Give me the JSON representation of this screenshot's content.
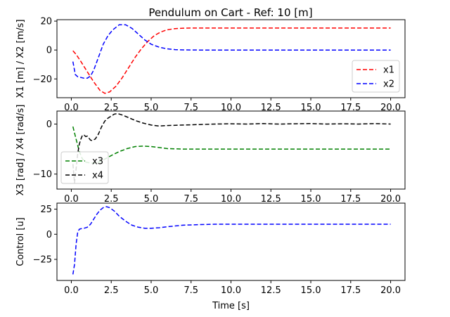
{
  "chart_data": [
    {
      "type": "line",
      "title": "Pendulum on Cart - Ref: 10 [m]",
      "xlabel": "",
      "ylabel": "X1 [m] / X2 [m/s]",
      "xlim": [
        -0.9,
        20.9
      ],
      "ylim": [
        -33,
        21
      ],
      "xticks": [
        "0.0",
        "2.5",
        "5.0",
        "7.5",
        "10.0",
        "12.5",
        "15.0",
        "17.5",
        "20.0"
      ],
      "yticks": [
        "20",
        "0",
        "−20"
      ],
      "legend": "lower-right",
      "series": [
        {
          "name": "x1",
          "color": "#ff0000",
          "style": "dashed",
          "x": [
            0.1,
            0.3,
            0.6,
            1.0,
            1.4,
            1.8,
            2.1,
            2.4,
            2.8,
            3.2,
            3.6,
            4.0,
            4.4,
            4.8,
            5.2,
            5.6,
            6.0,
            6.5,
            7.0,
            7.5,
            8.0,
            9.0,
            10.0,
            12.0,
            14.0,
            16.0,
            18.0,
            20.0
          ],
          "y": [
            -0.5,
            -3,
            -8,
            -15,
            -22,
            -28,
            -30,
            -29,
            -25,
            -19,
            -12,
            -5,
            1,
            6,
            10,
            12.5,
            14,
            14.8,
            15.1,
            15.2,
            15.2,
            15.2,
            15.2,
            15.2,
            15.2,
            15.2,
            15.2,
            15.2
          ]
        },
        {
          "name": "x2",
          "color": "#0000ff",
          "style": "dashed",
          "x": [
            0.1,
            0.25,
            0.4,
            0.6,
            0.8,
            1.0,
            1.2,
            1.4,
            1.6,
            1.8,
            2.0,
            2.3,
            2.6,
            3.0,
            3.4,
            3.8,
            4.2,
            4.6,
            5.0,
            5.5,
            6.0,
            6.5,
            7.0,
            8.0,
            9.0,
            10.0,
            12.0,
            14.0,
            16.0,
            18.0,
            20.0
          ],
          "y": [
            -8,
            -17,
            -18.5,
            -19,
            -19.5,
            -19.5,
            -18,
            -14,
            -8,
            -2,
            4,
            10,
            14,
            17.5,
            17.5,
            15,
            11,
            7,
            4,
            2,
            0.8,
            0.3,
            0.1,
            0,
            0,
            0,
            0,
            0,
            0,
            0,
            0
          ]
        }
      ]
    },
    {
      "type": "line",
      "title": "",
      "xlabel": "",
      "ylabel": "X3 [rad] / X4 [rad/s]",
      "xlim": [
        -0.9,
        20.9
      ],
      "ylim": [
        -13,
        2.6
      ],
      "xticks": [
        "0.0",
        "2.5",
        "5.0",
        "7.5",
        "10.0",
        "12.5",
        "15.0",
        "17.5",
        "20.0"
      ],
      "yticks": [
        "0",
        "−10"
      ],
      "legend": "lower-left",
      "series": [
        {
          "name": "x3",
          "color": "#008000",
          "style": "dashed",
          "x": [
            0.1,
            0.3,
            0.5,
            0.7,
            0.9,
            1.2,
            1.5,
            1.8,
            2.1,
            2.5,
            3.0,
            3.5,
            4.0,
            4.5,
            5.0,
            5.5,
            6.0,
            7.0,
            8.0,
            10.0,
            12.0,
            14.0,
            16.0,
            18.0,
            20.0
          ],
          "y": [
            -0.5,
            -3,
            -5.5,
            -7,
            -7.6,
            -7.8,
            -7.8,
            -7.5,
            -7,
            -6.3,
            -5.5,
            -4.9,
            -4.5,
            -4.4,
            -4.5,
            -4.7,
            -4.9,
            -5.0,
            -5.0,
            -5.0,
            -5.0,
            -5.0,
            -5.0,
            -5.0,
            -5.0
          ]
        },
        {
          "name": "x4",
          "color": "#000000",
          "style": "dashed",
          "x": [
            0.1,
            0.2,
            0.3,
            0.4,
            0.5,
            0.6,
            0.7,
            0.8,
            0.9,
            1.0,
            1.1,
            1.2,
            1.3,
            1.5,
            1.7,
            1.9,
            2.1,
            2.3,
            2.5,
            2.7,
            2.9,
            3.2,
            3.5,
            3.8,
            4.1,
            4.5,
            5.0,
            5.5,
            6.0,
            7.0,
            8.0,
            9.0,
            10.0,
            11.0,
            12.0,
            13.0,
            14.0,
            15.0,
            16.0,
            17.0,
            18.0,
            19.0,
            20.0
          ],
          "y": [
            -8,
            -11.8,
            -9,
            -6,
            -4,
            -3,
            -2.2,
            -2.2,
            -2.5,
            -2.4,
            -2.8,
            -3.2,
            -3.3,
            -3.0,
            -2.0,
            -0.5,
            0.6,
            1.2,
            1.6,
            2.0,
            2.1,
            1.8,
            1.4,
            1.0,
            0.6,
            0.2,
            -0.2,
            -0.4,
            -0.3,
            -0.2,
            -0.1,
            0,
            0.05,
            0,
            0.1,
            0,
            0.05,
            0.1,
            0,
            0.05,
            0,
            0.1,
            0
          ]
        }
      ]
    },
    {
      "type": "line",
      "title": "",
      "xlabel": "Time [s]",
      "ylabel": "Control [u]",
      "xlim": [
        -0.9,
        20.9
      ],
      "ylim": [
        -46,
        31
      ],
      "xticks": [
        "0.0",
        "2.5",
        "5.0",
        "7.5",
        "10.0",
        "12.5",
        "15.0",
        "17.5",
        "20.0"
      ],
      "yticks": [
        "25",
        "0",
        "−25"
      ],
      "legend": "none",
      "series": [
        {
          "name": "",
          "color": "#0000ff",
          "style": "dashed",
          "x": [
            0.1,
            0.2,
            0.3,
            0.4,
            0.5,
            0.6,
            0.8,
            1.0,
            1.2,
            1.4,
            1.6,
            1.8,
            2.0,
            2.2,
            2.4,
            2.7,
            3.0,
            3.4,
            3.8,
            4.2,
            4.6,
            5.0,
            5.5,
            6.0,
            7.0,
            8.0,
            9.0,
            10.0,
            12.0,
            14.0,
            16.0,
            18.0,
            20.0
          ],
          "y": [
            -40,
            -30,
            -10,
            2,
            5,
            5.5,
            6,
            7,
            10,
            15,
            20,
            24,
            26.5,
            27.5,
            26.5,
            23,
            18,
            13,
            9,
            7,
            6,
            6,
            6.5,
            7.5,
            9,
            9.6,
            10,
            10,
            10,
            10,
            10,
            10,
            10
          ]
        }
      ]
    }
  ]
}
